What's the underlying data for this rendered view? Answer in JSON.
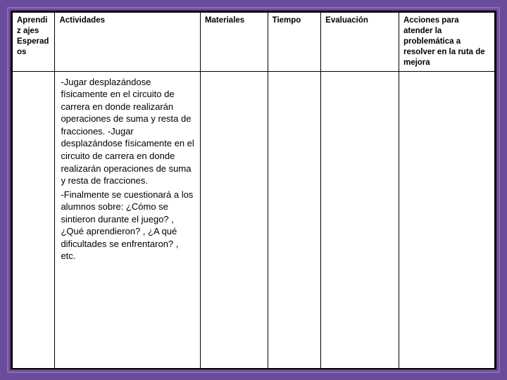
{
  "table": {
    "headers": {
      "aprendizajes": "Aprendiz\najes Esperad\nos",
      "actividades": "Actividades",
      "materiales": "Materiales",
      "tiempo": "Tiempo",
      "evaluacion": "Evaluación",
      "acciones": "Acciones para atender la problemática a resolver en la ruta de mejora"
    },
    "row": {
      "aprendizajes": "",
      "actividades_p1": "-Jugar desplazándose físicamente en el circuito de carrera en donde realizarán operaciones de suma y resta de fracciones. -Jugar desplazándose físicamente en el circuito de carrera en donde realizarán operaciones de suma y resta de fracciones.",
      "actividades_p2": "-Finalmente se cuestionará a los alumnos sobre: ¿Cómo se sintieron durante el juego? , ¿Qué aprendieron? , ¿A qué dificultades se enfrentaron? , etc.",
      "materiales": "",
      "tiempo": "",
      "evaluacion": "",
      "acciones": ""
    },
    "colors": {
      "background": "#6b4c9a",
      "inner_border": "#8a6bb8",
      "table_bg": "#ffffff",
      "border": "#000000",
      "text": "#000000"
    },
    "styling": {
      "header_fontsize": 11.5,
      "content_fontsize": 13,
      "header_fontweight": "bold",
      "col_widths": {
        "aprendizajes": 60,
        "actividades": 205,
        "materiales": 95,
        "tiempo": 75,
        "evaluacion": 110,
        "acciones": 135
      }
    }
  }
}
